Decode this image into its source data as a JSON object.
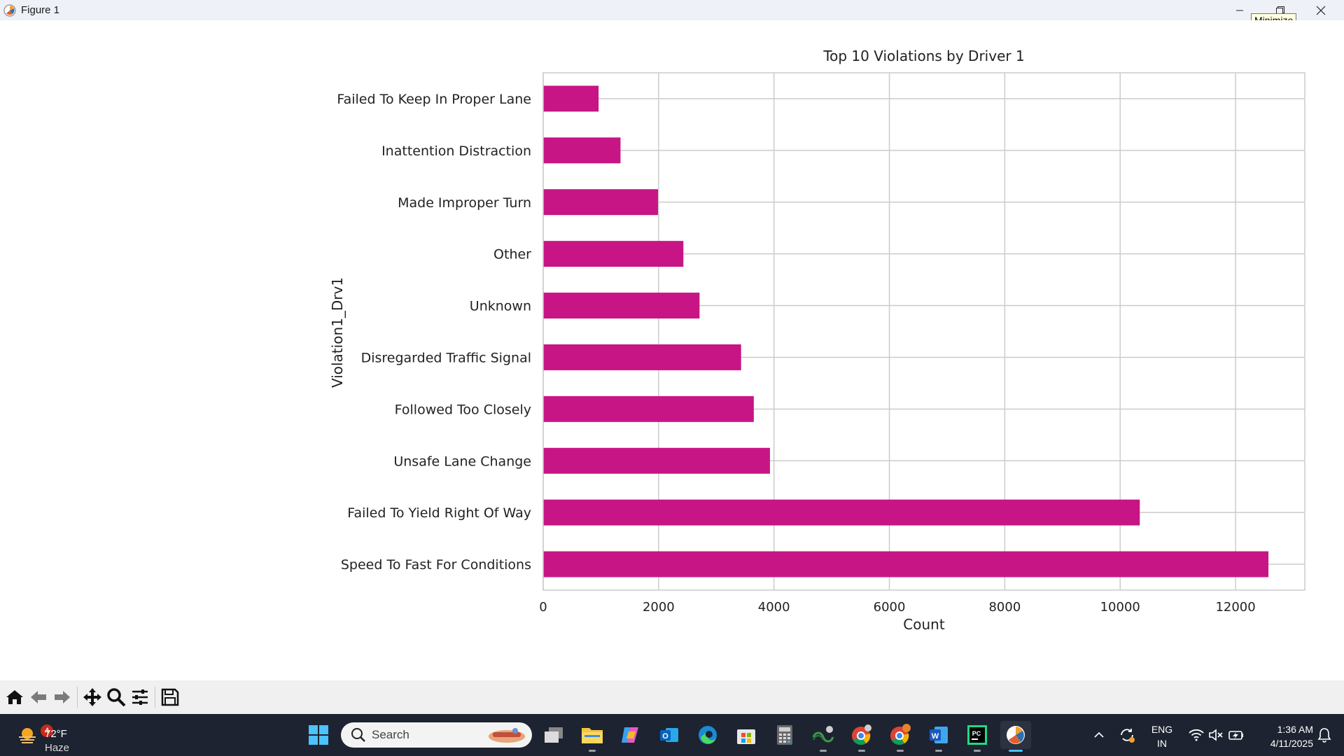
{
  "window": {
    "title": "Figure 1",
    "tooltip": "Minimize"
  },
  "chart_data": {
    "type": "bar",
    "orientation": "horizontal",
    "title": "Top 10 Violations by Driver 1",
    "xlabel": "Count",
    "ylabel": "Violation1_Drv1",
    "xlim": [
      0,
      13200
    ],
    "x_ticks": [
      0,
      2000,
      4000,
      6000,
      8000,
      10000,
      12000
    ],
    "grid": true,
    "bar_color": "#c71585",
    "categories": [
      "Failed To Keep In Proper Lane",
      "Inattention Distraction",
      "Made Improper Turn",
      "Other",
      "Unknown",
      "Disregarded Traffic Signal",
      "Followed Too Closely",
      "Unsafe Lane Change",
      "Failed To Yield Right Of Way",
      "Speed To Fast For Conditions"
    ],
    "values": [
      960,
      1340,
      1990,
      2430,
      2710,
      3430,
      3650,
      3930,
      10340,
      12570
    ]
  },
  "toolbar": {
    "buttons": [
      "home-icon",
      "back-icon",
      "forward-icon",
      "pan-icon",
      "zoom-icon",
      "configure-subplots-icon",
      "save-icon"
    ]
  },
  "taskbar": {
    "weather": {
      "badge": "4",
      "temp": "72°F",
      "condition": "Haze"
    },
    "search_placeholder": "Search",
    "lang_top": "ENG",
    "lang_bottom": "IN",
    "time": "1:36 AM",
    "date": "4/11/2025"
  }
}
